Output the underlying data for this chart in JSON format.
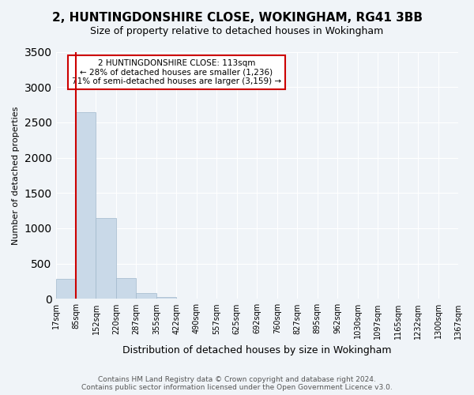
{
  "title": "2, HUNTINGDONSHIRE CLOSE, WOKINGHAM, RG41 3BB",
  "subtitle": "Size of property relative to detached houses in Wokingham",
  "xlabel": "Distribution of detached houses by size in Wokingham",
  "ylabel": "Number of detached properties",
  "bar_color": "#c9d9e8",
  "bar_edge_color": "#a0b8cc",
  "background_color": "#f0f4f8",
  "grid_color": "#ffffff",
  "annotation_box_color": "#ffffff",
  "annotation_box_edge": "#cc0000",
  "vline_color": "#cc0000",
  "bin_labels": [
    "17sqm",
    "85sqm",
    "152sqm",
    "220sqm",
    "287sqm",
    "355sqm",
    "422sqm",
    "490sqm",
    "557sqm",
    "625sqm",
    "692sqm",
    "760sqm",
    "827sqm",
    "895sqm",
    "962sqm",
    "1030sqm",
    "1097sqm",
    "1165sqm",
    "1232sqm",
    "1300sqm",
    "1367sqm"
  ],
  "bar_heights": [
    280,
    2640,
    1140,
    290,
    80,
    30,
    0,
    0,
    0,
    0,
    0,
    0,
    0,
    0,
    0,
    0,
    0,
    0,
    0,
    0
  ],
  "ylim": [
    0,
    3500
  ],
  "yticks": [
    0,
    500,
    1000,
    1500,
    2000,
    2500,
    3000,
    3500
  ],
  "vline_x_index": 1,
  "annotation_text": "2 HUNTINGDONSHIRE CLOSE: 113sqm\n← 28% of detached houses are smaller (1,236)\n71% of semi-detached houses are larger (3,159) →",
  "footer_line1": "Contains HM Land Registry data © Crown copyright and database right 2024.",
  "footer_line2": "Contains public sector information licensed under the Open Government Licence v3.0."
}
